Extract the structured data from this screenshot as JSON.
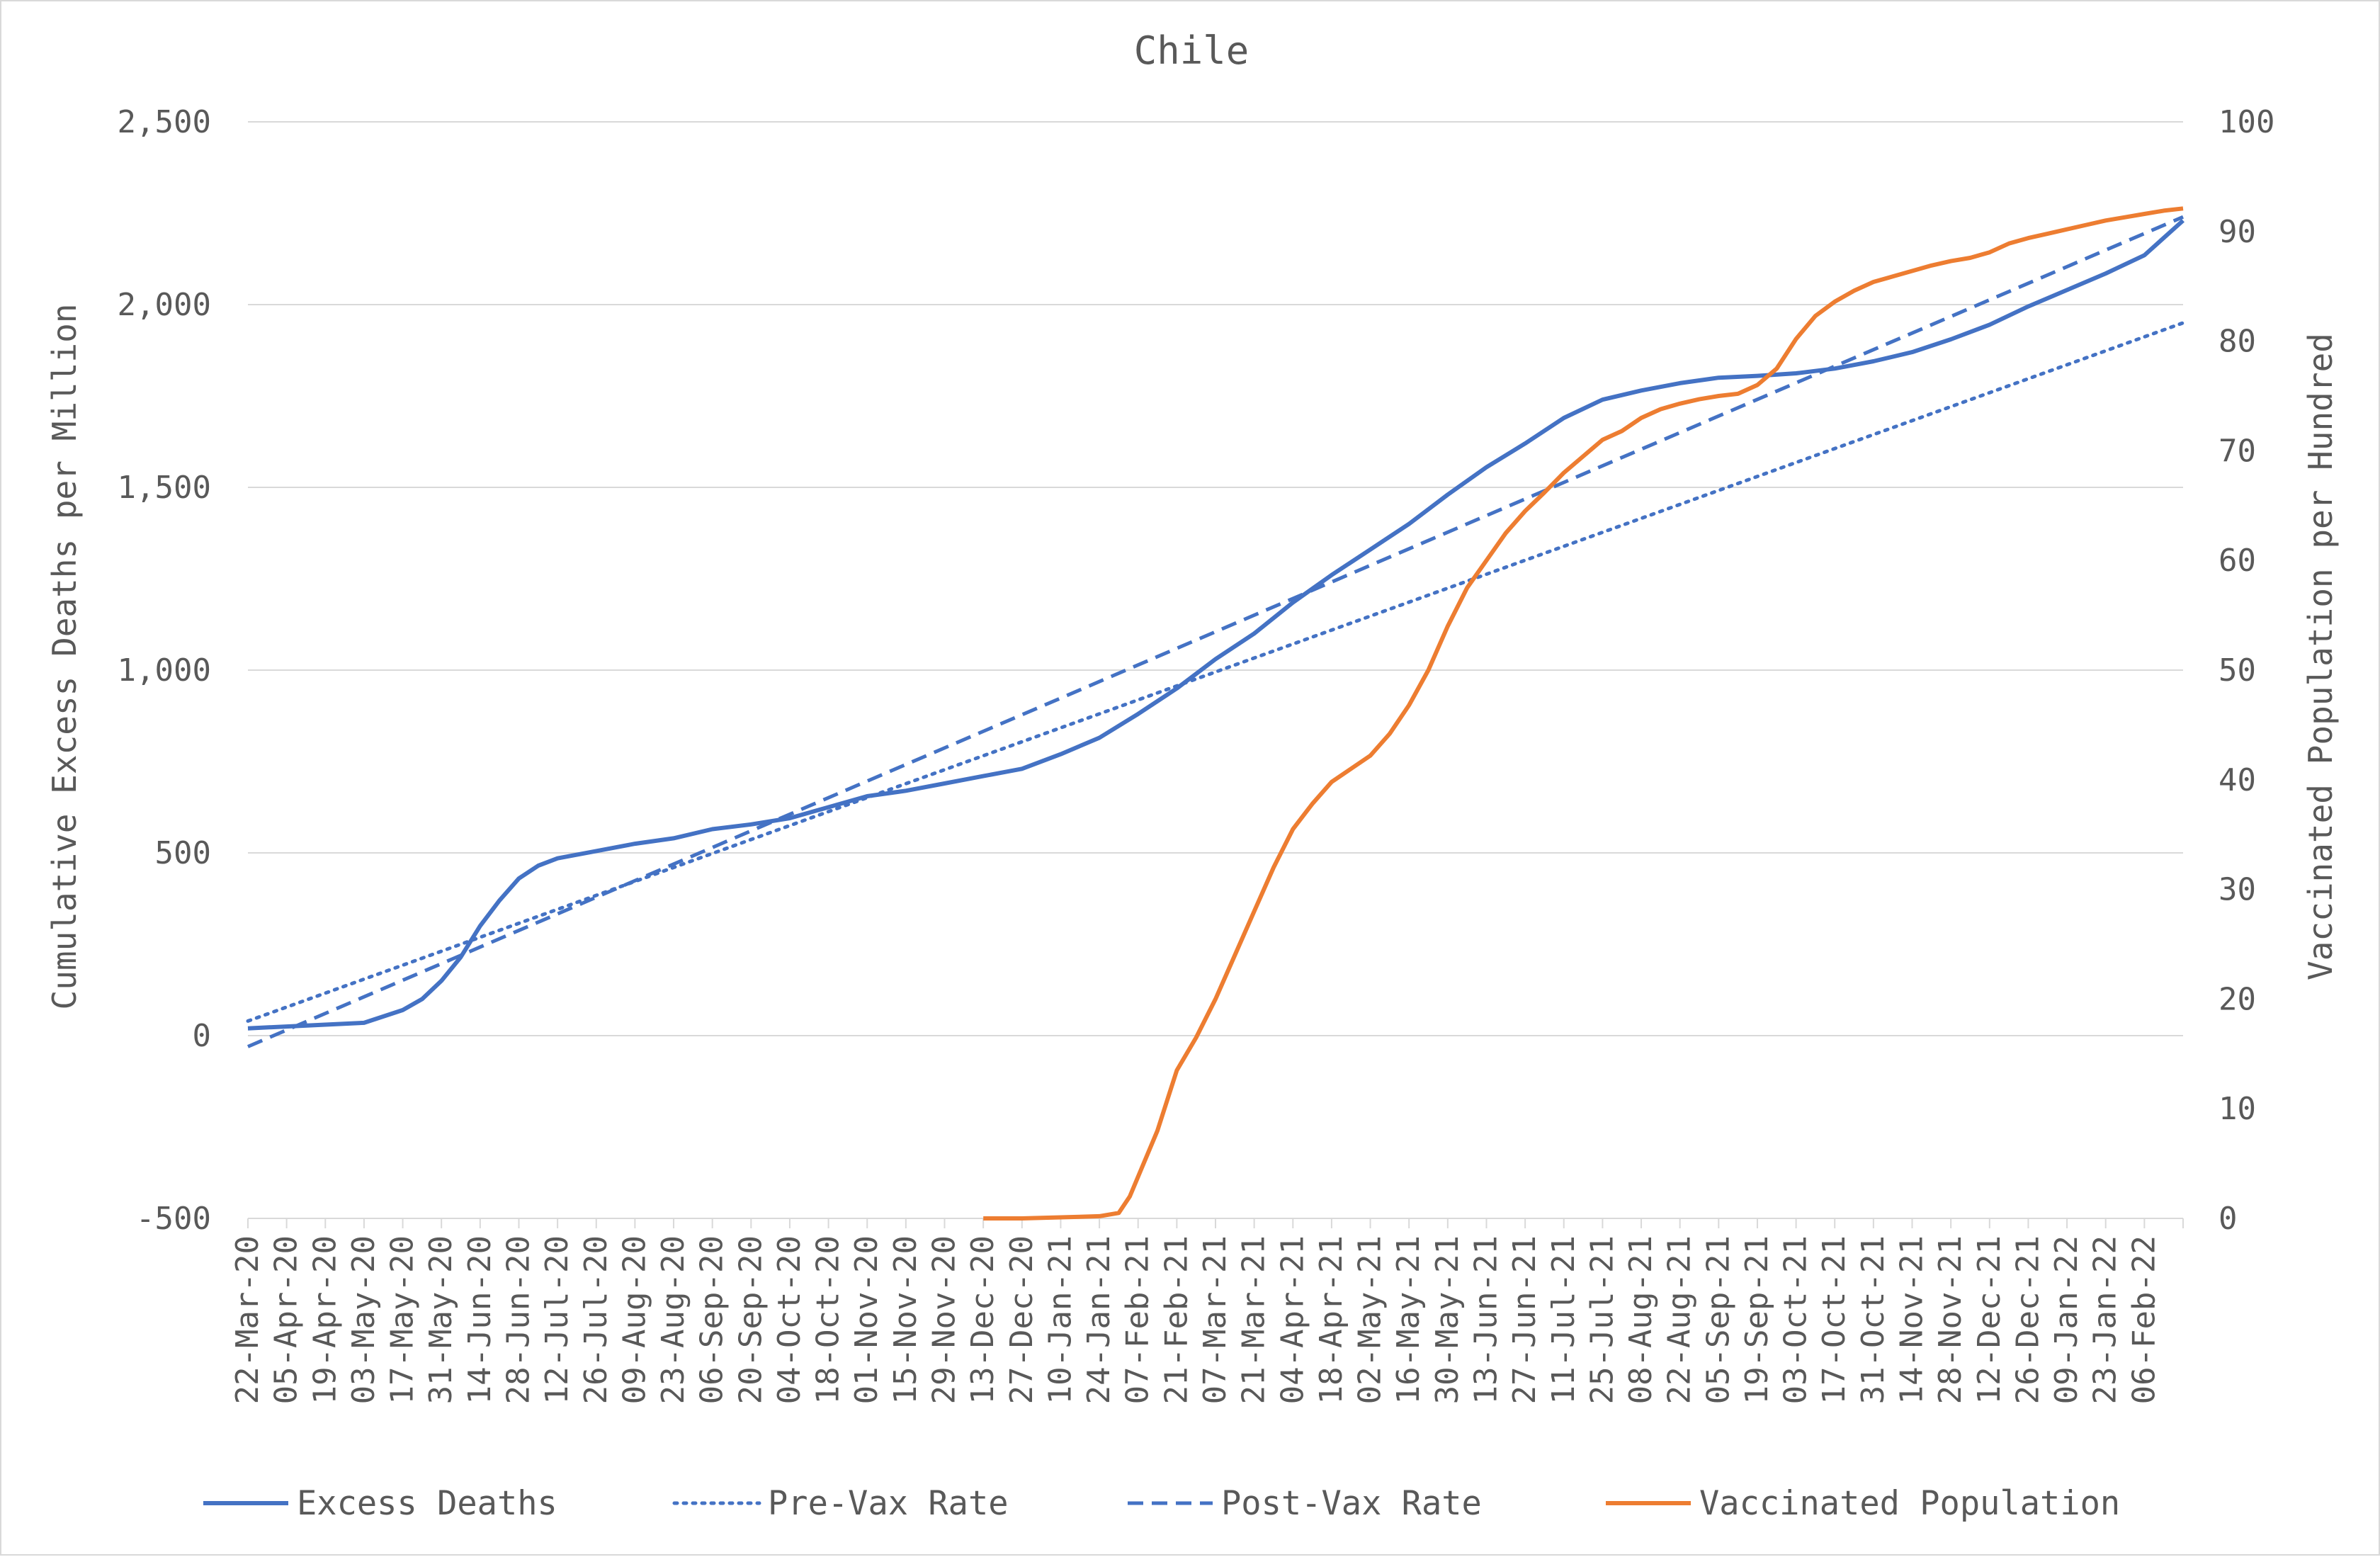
{
  "chart_data": {
    "type": "line",
    "title": "Chile",
    "ylabel": "Cumulative Excess Deaths per Million",
    "y2label": "Vaccinated Population per Hundred",
    "ylim": [
      -500,
      2500
    ],
    "y2lim": [
      0,
      100
    ],
    "y_ticks": [
      -500,
      0,
      500,
      1000,
      1500,
      2000,
      2500
    ],
    "y_tick_labels": [
      "-500",
      "0",
      "500",
      "1,000",
      "1,500",
      "2,000",
      "2,500"
    ],
    "y2_ticks": [
      0,
      10,
      20,
      30,
      40,
      50,
      60,
      70,
      80,
      90,
      100
    ],
    "y2_tick_labels": [
      "0",
      "10",
      "20",
      "30",
      "40",
      "50",
      "60",
      "70",
      "80",
      "90",
      "100"
    ],
    "x_tick_labels": [
      "22-Mar-20",
      "05-Apr-20",
      "19-Apr-20",
      "03-May-20",
      "17-May-20",
      "31-May-20",
      "14-Jun-20",
      "28-Jun-20",
      "12-Jul-20",
      "26-Jul-20",
      "09-Aug-20",
      "23-Aug-20",
      "06-Sep-20",
      "20-Sep-20",
      "04-Oct-20",
      "18-Oct-20",
      "01-Nov-20",
      "15-Nov-20",
      "29-Nov-20",
      "13-Dec-20",
      "27-Dec-20",
      "10-Jan-21",
      "24-Jan-21",
      "07-Feb-21",
      "21-Feb-21",
      "07-Mar-21",
      "21-Mar-21",
      "04-Apr-21",
      "18-Apr-21",
      "02-May-21",
      "16-May-21",
      "30-May-21",
      "13-Jun-21",
      "27-Jun-21",
      "11-Jul-21",
      "25-Jul-21",
      "08-Aug-21",
      "22-Aug-21",
      "05-Sep-21",
      "19-Sep-21",
      "03-Oct-21",
      "17-Oct-21",
      "31-Oct-21",
      "14-Nov-21",
      "28-Nov-21",
      "12-Dec-21",
      "26-Dec-21",
      "09-Jan-22",
      "23-Jan-22",
      "06-Feb-22"
    ],
    "x_end": "20-Feb-22",
    "grid": true,
    "legend_position": "bottom",
    "series": [
      {
        "name": "Excess Deaths",
        "axis": "left",
        "color": "#4472c4",
        "style": "solid",
        "points": [
          [
            "22-Mar-20",
            20
          ],
          [
            "05-Apr-20",
            25
          ],
          [
            "19-Apr-20",
            30
          ],
          [
            "03-May-20",
            35
          ],
          [
            "17-May-20",
            70
          ],
          [
            "24-May-20",
            100
          ],
          [
            "31-May-20",
            150
          ],
          [
            "07-Jun-20",
            215
          ],
          [
            "14-Jun-20",
            300
          ],
          [
            "21-Jun-20",
            370
          ],
          [
            "28-Jun-20",
            430
          ],
          [
            "05-Jul-20",
            465
          ],
          [
            "12-Jul-20",
            485
          ],
          [
            "26-Jul-20",
            505
          ],
          [
            "09-Aug-20",
            525
          ],
          [
            "23-Aug-20",
            540
          ],
          [
            "06-Sep-20",
            565
          ],
          [
            "20-Sep-20",
            578
          ],
          [
            "04-Oct-20",
            595
          ],
          [
            "18-Oct-20",
            625
          ],
          [
            "01-Nov-20",
            655
          ],
          [
            "15-Nov-20",
            670
          ],
          [
            "29-Nov-20",
            690
          ],
          [
            "13-Dec-20",
            710
          ],
          [
            "27-Dec-20",
            730
          ],
          [
            "10-Jan-21",
            770
          ],
          [
            "24-Jan-21",
            815
          ],
          [
            "07-Feb-21",
            880
          ],
          [
            "21-Feb-21",
            950
          ],
          [
            "07-Mar-21",
            1030
          ],
          [
            "21-Mar-21",
            1100
          ],
          [
            "04-Apr-21",
            1185
          ],
          [
            "18-Apr-21",
            1260
          ],
          [
            "02-May-21",
            1330
          ],
          [
            "16-May-21",
            1400
          ],
          [
            "30-May-21",
            1480
          ],
          [
            "13-Jun-21",
            1555
          ],
          [
            "27-Jun-21",
            1620
          ],
          [
            "11-Jul-21",
            1690
          ],
          [
            "25-Jul-21",
            1740
          ],
          [
            "08-Aug-21",
            1765
          ],
          [
            "22-Aug-21",
            1785
          ],
          [
            "05-Sep-21",
            1800
          ],
          [
            "19-Sep-21",
            1805
          ],
          [
            "03-Oct-21",
            1812
          ],
          [
            "17-Oct-21",
            1825
          ],
          [
            "31-Oct-21",
            1845
          ],
          [
            "14-Nov-21",
            1870
          ],
          [
            "28-Nov-21",
            1905
          ],
          [
            "12-Dec-21",
            1945
          ],
          [
            "26-Dec-21",
            1995
          ],
          [
            "09-Jan-22",
            2040
          ],
          [
            "23-Jan-22",
            2085
          ],
          [
            "06-Feb-22",
            2135
          ],
          [
            "20-Feb-22",
            2230
          ]
        ]
      },
      {
        "name": "Pre-Vax Rate",
        "axis": "left",
        "color": "#4472c4",
        "style": "dotted",
        "points": [
          [
            "22-Mar-20",
            40
          ],
          [
            "20-Feb-22",
            1950
          ]
        ]
      },
      {
        "name": "Post-Vax Rate",
        "axis": "left",
        "color": "#4472c4",
        "style": "dashed",
        "points": [
          [
            "22-Mar-20",
            -30
          ],
          [
            "20-Feb-22",
            2240
          ]
        ]
      },
      {
        "name": "Vaccinated Population",
        "axis": "right",
        "color": "#ed7d31",
        "style": "solid",
        "points": [
          [
            "13-Dec-20",
            0
          ],
          [
            "27-Dec-20",
            0
          ],
          [
            "10-Jan-21",
            0.1
          ],
          [
            "24-Jan-21",
            0.2
          ],
          [
            "31-Jan-21",
            0.5
          ],
          [
            "04-Feb-21",
            2
          ],
          [
            "14-Feb-21",
            8
          ],
          [
            "21-Feb-21",
            13.5
          ],
          [
            "28-Feb-21",
            16.5
          ],
          [
            "07-Mar-21",
            20
          ],
          [
            "14-Mar-21",
            24
          ],
          [
            "21-Mar-21",
            28
          ],
          [
            "28-Mar-21",
            32
          ],
          [
            "04-Apr-21",
            35.5
          ],
          [
            "11-Apr-21",
            37.8
          ],
          [
            "18-Apr-21",
            39.8
          ],
          [
            "25-Apr-21",
            41
          ],
          [
            "02-May-21",
            42.2
          ],
          [
            "09-May-21",
            44.2
          ],
          [
            "16-May-21",
            46.8
          ],
          [
            "23-May-21",
            50
          ],
          [
            "30-May-21",
            54
          ],
          [
            "06-Jun-21",
            57.5
          ],
          [
            "13-Jun-21",
            60
          ],
          [
            "20-Jun-21",
            62.5
          ],
          [
            "27-Jun-21",
            64.5
          ],
          [
            "04-Jul-21",
            66.2
          ],
          [
            "11-Jul-21",
            68
          ],
          [
            "18-Jul-21",
            69.5
          ],
          [
            "25-Jul-21",
            71
          ],
          [
            "01-Aug-21",
            71.8
          ],
          [
            "08-Aug-21",
            73
          ],
          [
            "15-Aug-21",
            73.8
          ],
          [
            "22-Aug-21",
            74.3
          ],
          [
            "29-Aug-21",
            74.7
          ],
          [
            "05-Sep-21",
            75
          ],
          [
            "12-Sep-21",
            75.2
          ],
          [
            "19-Sep-21",
            76
          ],
          [
            "26-Sep-21",
            77.5
          ],
          [
            "03-Oct-21",
            80.2
          ],
          [
            "10-Oct-21",
            82.3
          ],
          [
            "17-Oct-21",
            83.6
          ],
          [
            "24-Oct-21",
            84.6
          ],
          [
            "31-Oct-21",
            85.4
          ],
          [
            "07-Nov-21",
            85.9
          ],
          [
            "14-Nov-21",
            86.4
          ],
          [
            "21-Nov-21",
            86.9
          ],
          [
            "28-Nov-21",
            87.3
          ],
          [
            "05-Dec-21",
            87.6
          ],
          [
            "12-Dec-21",
            88.1
          ],
          [
            "19-Dec-21",
            88.9
          ],
          [
            "26-Dec-21",
            89.4
          ],
          [
            "02-Jan-22",
            89.8
          ],
          [
            "09-Jan-22",
            90.2
          ],
          [
            "16-Jan-22",
            90.6
          ],
          [
            "23-Jan-22",
            91
          ],
          [
            "30-Jan-22",
            91.3
          ],
          [
            "06-Feb-22",
            91.6
          ],
          [
            "13-Feb-22",
            91.9
          ],
          [
            "20-Feb-22",
            92.1
          ]
        ]
      }
    ]
  }
}
